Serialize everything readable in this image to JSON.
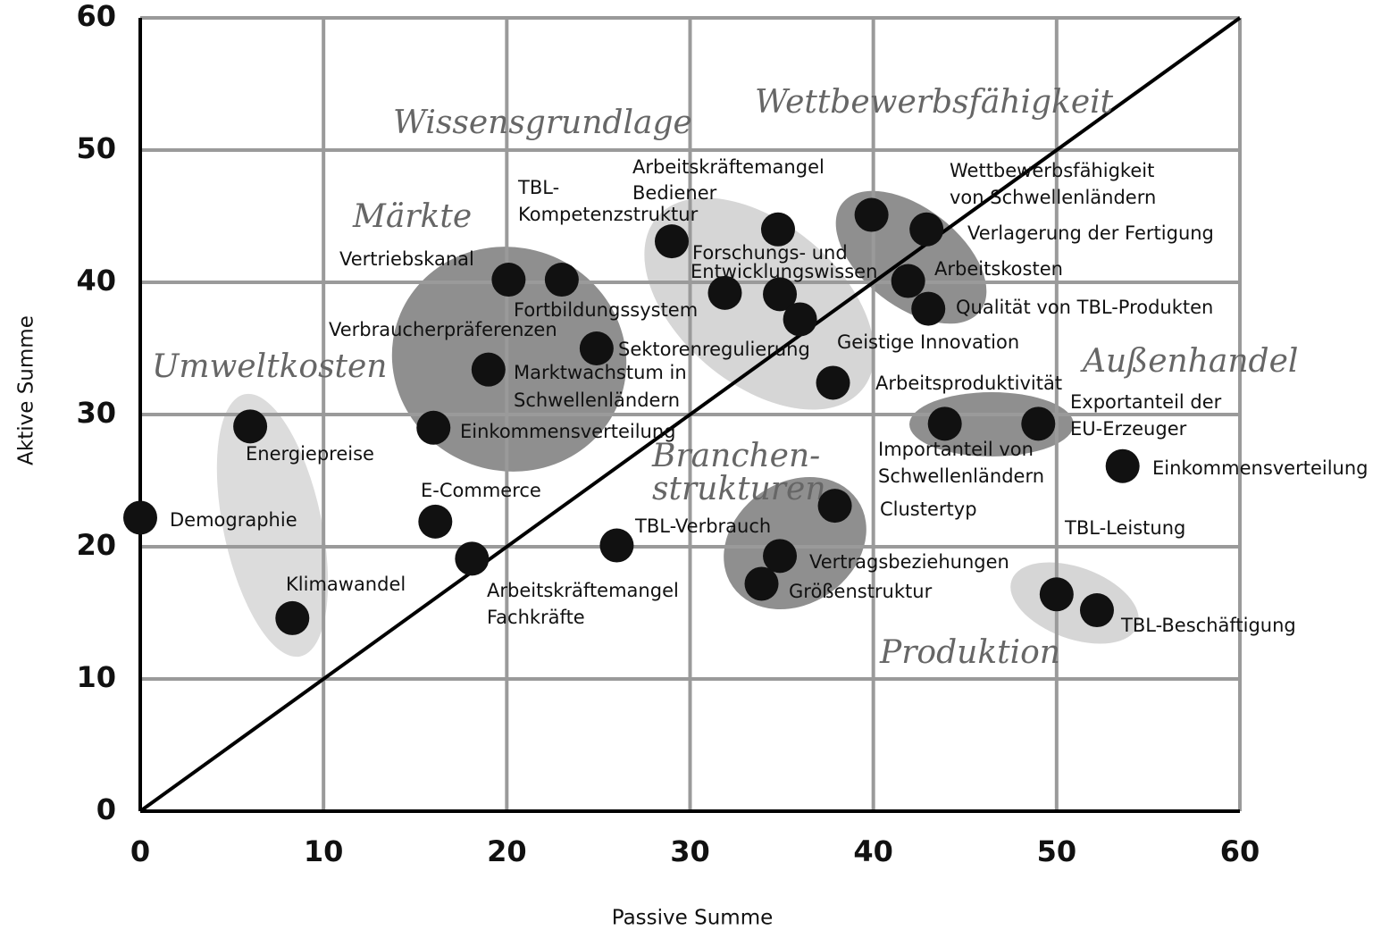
{
  "chart_data": {
    "type": "scatter",
    "xlabel": "Passive Summe",
    "ylabel": "Aktive Summe",
    "xlim": [
      0,
      60
    ],
    "ylim": [
      0,
      60
    ],
    "xticks": [
      0,
      10,
      20,
      30,
      40,
      50,
      60
    ],
    "yticks": [
      0,
      10,
      20,
      30,
      40,
      50,
      60
    ],
    "grid": true,
    "color": "#111111",
    "x": [
      0,
      6.0,
      8.3,
      16.0,
      16.1,
      18.1,
      19.0,
      20.1,
      23.0,
      24.9,
      29.0,
      34.8,
      31.9,
      34.9,
      36.0,
      37.8,
      39.9,
      42.9,
      41.9,
      43.0,
      43.9,
      49.0,
      53.6,
      37.9,
      26.0,
      34.9,
      33.9,
      50.0,
      52.2
    ],
    "values": [
      22.2,
      29.1,
      14.6,
      29.0,
      21.9,
      19.1,
      33.4,
      40.2,
      40.2,
      35.0,
      43.1,
      44.0,
      39.2,
      39.1,
      37.2,
      32.4,
      45.1,
      44.0,
      40.1,
      38.0,
      29.3,
      29.3,
      26.1,
      23.1,
      20.1,
      19.3,
      17.2,
      16.4,
      15.2
    ],
    "group_labels": [
      "Wissensgrundlage",
      "Wettbewerbsfähigkeit",
      "Märkte",
      "Umweltkosten",
      "Außenhandel",
      "Branchen-",
      "strukturen",
      "Produktion"
    ],
    "annotations": [
      "Arbeitskräftemangel",
      "Bediener",
      "TBL-",
      "Kompetenzstruktur",
      "Wettbewerbsfähigkeit",
      "von Schwellenländern",
      "Verlagerung der Fertigung",
      "Vertriebskanal",
      "Forschungs- und",
      "Entwicklungswissen",
      "Arbeitskosten",
      "Fortbildungssystem",
      "Qualität von TBL-Produkten",
      "Verbraucherpräferenzen",
      "Geistige Innovation",
      "Sektorenregulierung",
      "Marktwachstum in",
      "Schwellenländern",
      "Arbeitsproduktivität",
      "Exportanteil der",
      "EU-Erzeuger",
      "Einkommensverteilung",
      "Energiepreise",
      "Importanteil von",
      "Schwellenländern",
      "Einkommensverteilung",
      "E-Commerce",
      "Clustertyp",
      "Demographie",
      "TBL-Verbrauch",
      "TBL-Leistung",
      "Vertragsbeziehungen",
      "Klimawandel",
      "Arbeitskräftemangel",
      "Größenstruktur",
      "Fachkräfte",
      "TBL-Beschäftigung"
    ]
  }
}
